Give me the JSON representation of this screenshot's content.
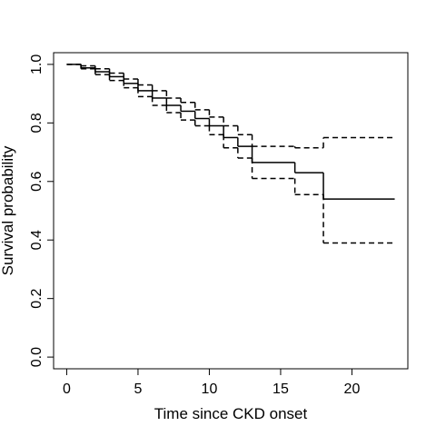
{
  "chart_data": {
    "type": "step",
    "xlabel": "Time since CKD onset",
    "ylabel": "Survival probability",
    "x": [
      0,
      1,
      2,
      3,
      4,
      5,
      6,
      7,
      8,
      9,
      10,
      11,
      12,
      13,
      16,
      18,
      23
    ],
    "series": [
      {
        "color": "#000000",
        "dashed": false,
        "values": [
          1.0,
          0.988,
          0.975,
          0.958,
          0.935,
          0.91,
          0.885,
          0.86,
          0.84,
          0.815,
          0.79,
          0.75,
          0.72,
          0.665,
          0.63,
          0.54,
          0.54
        ]
      },
      {
        "color": "#000000",
        "dashed": true,
        "values": [
          1.0,
          0.995,
          0.985,
          0.97,
          0.95,
          0.93,
          0.91,
          0.885,
          0.87,
          0.845,
          0.82,
          0.79,
          0.76,
          0.72,
          0.715,
          0.75,
          0.75
        ]
      },
      {
        "color": "#000000",
        "dashed": true,
        "values": [
          1.0,
          0.985,
          0.965,
          0.945,
          0.92,
          0.89,
          0.86,
          0.835,
          0.81,
          0.79,
          0.76,
          0.715,
          0.68,
          0.61,
          0.555,
          0.39,
          0.39
        ]
      }
    ],
    "xlim": [
      -0.92,
      23.92
    ],
    "ylim": [
      -0.04,
      1.04
    ],
    "xticks": [
      0,
      5,
      10,
      15,
      20
    ],
    "yticks": [
      {
        "value": 0,
        "label": "0.0"
      },
      0.2,
      0.4,
      0.6,
      0.8,
      {
        "value": 1,
        "label": "1.0"
      }
    ]
  }
}
